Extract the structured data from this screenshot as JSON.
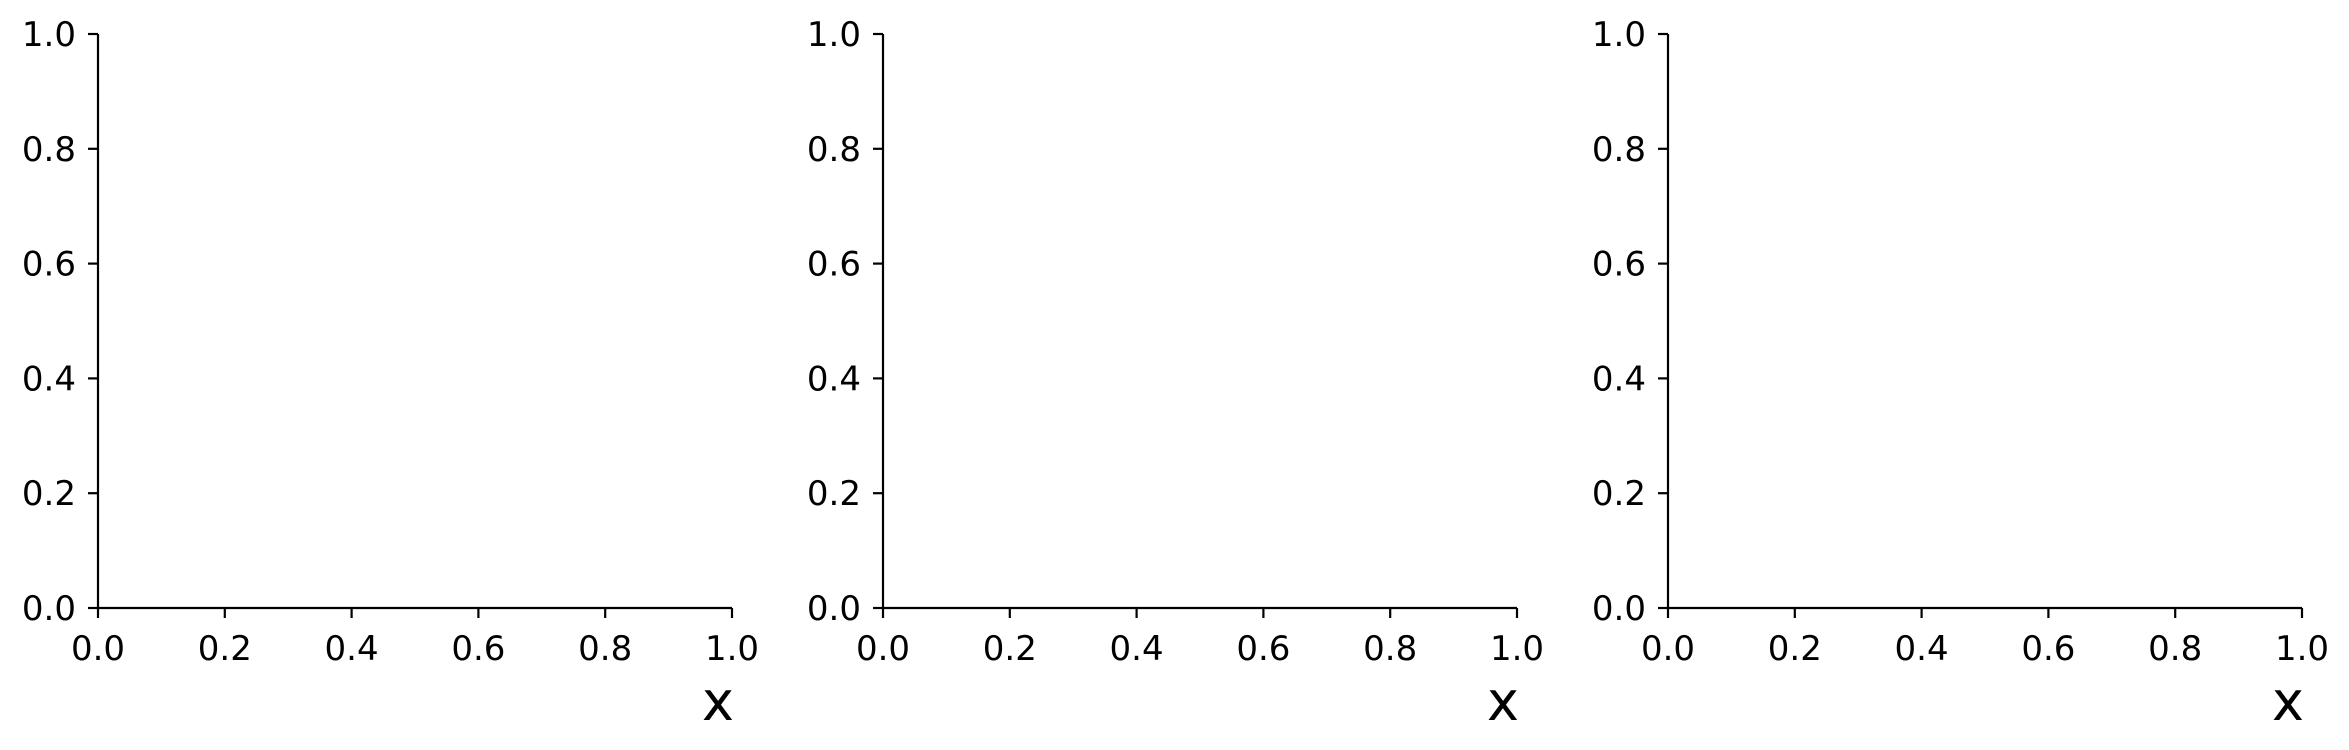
{
  "chart_data": [
    {
      "type": "line",
      "series": [],
      "xlabel": "x",
      "ylabel": "",
      "title": "",
      "xlim": [
        0.0,
        1.0
      ],
      "ylim": [
        0.0,
        1.0
      ],
      "xticks": [
        "0.0",
        "0.2",
        "0.4",
        "0.6",
        "0.8",
        "1.0"
      ],
      "yticks": [
        "0.0",
        "0.2",
        "0.4",
        "0.6",
        "0.8",
        "1.0"
      ],
      "grid": false,
      "spines": [
        "left",
        "bottom"
      ]
    },
    {
      "type": "line",
      "series": [],
      "xlabel": "x",
      "ylabel": "",
      "title": "",
      "xlim": [
        0.0,
        1.0
      ],
      "ylim": [
        0.0,
        1.0
      ],
      "xticks": [
        "0.0",
        "0.2",
        "0.4",
        "0.6",
        "0.8",
        "1.0"
      ],
      "yticks": [
        "0.0",
        "0.2",
        "0.4",
        "0.6",
        "0.8",
        "1.0"
      ],
      "grid": false,
      "spines": [
        "left",
        "bottom"
      ]
    },
    {
      "type": "line",
      "series": [],
      "xlabel": "x",
      "ylabel": "",
      "title": "",
      "xlim": [
        0.0,
        1.0
      ],
      "ylim": [
        0.0,
        1.0
      ],
      "xticks": [
        "0.0",
        "0.2",
        "0.4",
        "0.6",
        "0.8",
        "1.0"
      ],
      "yticks": [
        "0.0",
        "0.2",
        "0.4",
        "0.6",
        "0.8",
        "1.0"
      ],
      "grid": false,
      "spines": [
        "left",
        "bottom"
      ]
    }
  ],
  "colors": {
    "axis": "#000000",
    "background": "#ffffff"
  }
}
